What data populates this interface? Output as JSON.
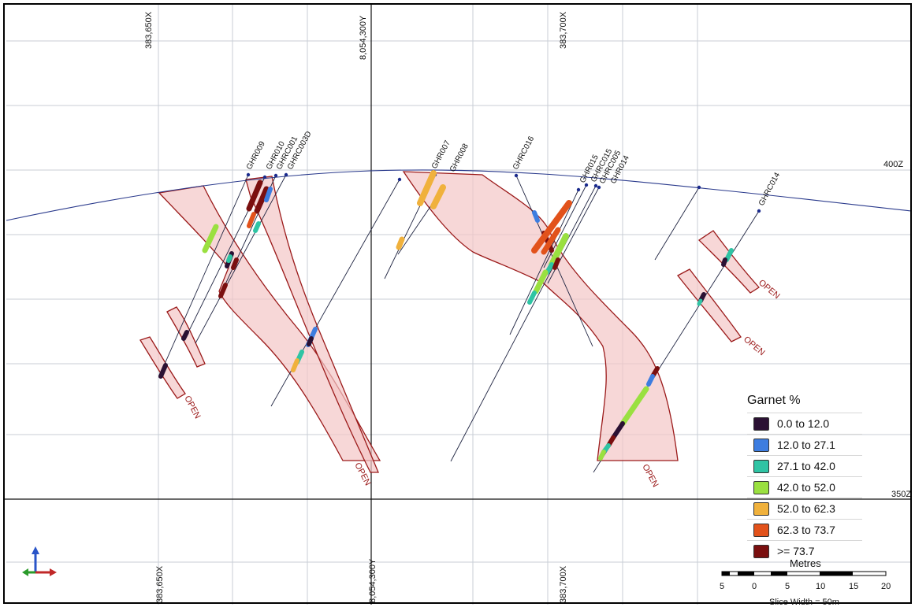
{
  "grid": {
    "easting_labels": [
      "383,650X",
      "383,700X"
    ],
    "northing_label": "8,054,300Y",
    "elevation_labels": [
      "400Z",
      "350Z"
    ]
  },
  "drillholes": [
    "GHR009",
    "GHR010",
    "GHRC001",
    "GHRC003D",
    "GHR007",
    "GHR008",
    "GHRC016",
    "GHR015",
    "GHRC015",
    "GHRC005",
    "GHR014",
    "GHRC014"
  ],
  "open_label": "OPEN",
  "legend": {
    "title": "Garnet %",
    "items": [
      {
        "label": "0.0 to 12.0",
        "color": "#2b1133"
      },
      {
        "label": "12.0 to 27.1",
        "color": "#3d7de0"
      },
      {
        "label": "27.1 to 42.0",
        "color": "#2fc4a4"
      },
      {
        "label": "42.0 to 52.0",
        "color": "#9ae040"
      },
      {
        "label": "52.0 to 62.3",
        "color": "#f0b13c"
      },
      {
        "label": "62.3 to 73.7",
        "color": "#e2521b"
      },
      {
        "label": ">= 73.7",
        "color": "#7a0f0f"
      }
    ]
  },
  "scale_bar": {
    "title": "Metres",
    "ticks": [
      "5",
      "0",
      "5",
      "10",
      "15",
      "20"
    ],
    "slice_width": "Slice Width = 50m"
  }
}
